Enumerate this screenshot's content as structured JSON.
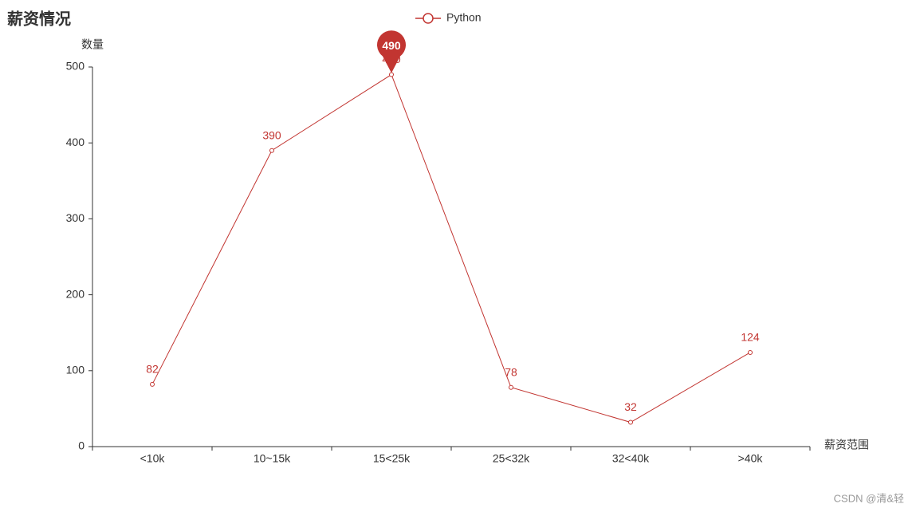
{
  "chart_data": {
    "type": "line",
    "title": "薪资情况",
    "y_axis_label": "数量",
    "x_axis_label": "薪资范围",
    "categories": [
      "<10k",
      "10~15k",
      "15<25k",
      "25<32k",
      "32<40k",
      ">40k"
    ],
    "series": [
      {
        "name": "Python",
        "color": "#c23531",
        "values": [
          82,
          390,
          490,
          78,
          32,
          124
        ]
      }
    ],
    "ylim": [
      0,
      500
    ],
    "yticks": [
      0,
      100,
      200,
      300,
      400,
      500
    ],
    "mark_point": "max",
    "grid": false,
    "watermark": "CSDN @清&轻"
  }
}
